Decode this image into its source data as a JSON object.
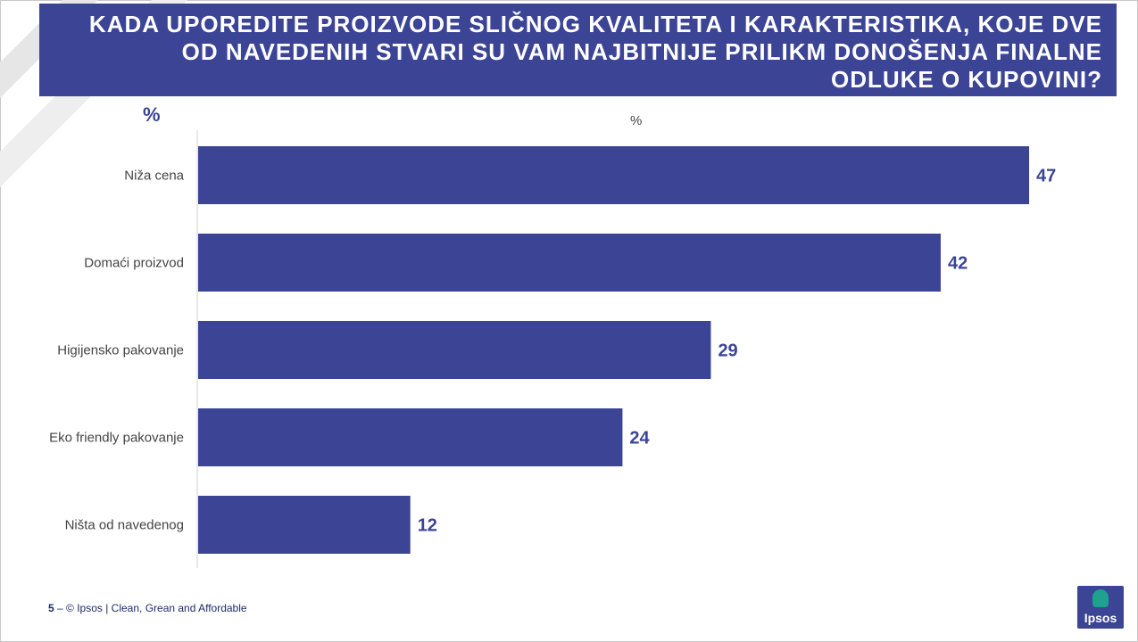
{
  "title": "KADA UPOREDITE PROIZVODE SLIČNOG KVALITETA I KARAKTERISTIKA, KOJE DVE OD NAVEDENIH STVARI SU VAM NAJBITNIJE PRILIKM DONOŠENJA FINALNE ODLUKE O KUPOVINI?",
  "unit_left": "%",
  "unit_top": "%",
  "chart_data": {
    "type": "bar",
    "orientation": "horizontal",
    "categories": [
      "Niža cena",
      "Domaći proizvod",
      "Higijensko pakovanje",
      "Eko friendly pakovanje",
      "Ništa od navedenog"
    ],
    "values": [
      47,
      42,
      29,
      24,
      12
    ],
    "xlim": [
      0,
      47
    ],
    "grid": false,
    "data_labels": true,
    "colors": {
      "bar": "#3c4496",
      "label": "#3c4496"
    }
  },
  "footer": {
    "page": "5",
    "text": " –  © Ipsos | Clean, Grean and Affordable"
  },
  "logo": {
    "text": "Ipsos"
  }
}
